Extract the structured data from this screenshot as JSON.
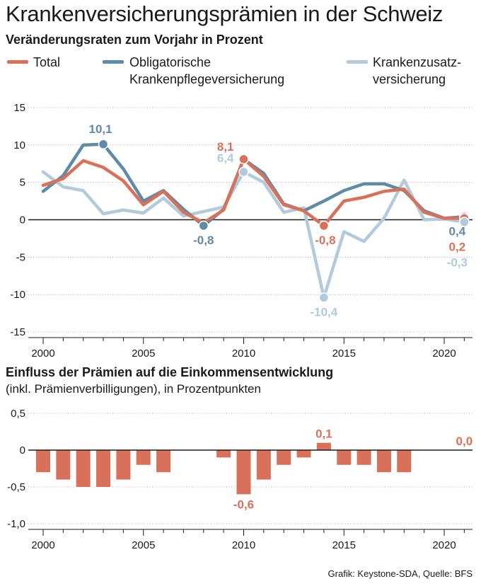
{
  "title": "Krankenversicherungsprämien in der Schweiz",
  "source": "Grafik: Keystone-SDA, Quelle: BFS",
  "colors": {
    "total": "#d9705a",
    "okp": "#5f8ba6",
    "zusatz": "#b3cadb",
    "zero": "#1a1a1a",
    "grid": "#999999",
    "bar": "#d9705a"
  },
  "legend": {
    "total": "Total",
    "okp_line1": "Obligatorische",
    "okp_line2": "Krankenpflegeversicherung",
    "zusatz_line1": "Krankenzusatz-",
    "zusatz_line2": "versicherung"
  },
  "chart_data": [
    {
      "type": "line",
      "title": "Veränderungsraten zum Vorjahr in Prozent",
      "x": [
        2000,
        2001,
        2002,
        2003,
        2004,
        2005,
        2006,
        2007,
        2008,
        2009,
        2010,
        2011,
        2012,
        2013,
        2014,
        2015,
        2016,
        2017,
        2018,
        2019,
        2020,
        2021
      ],
      "ylim": [
        -15,
        15
      ],
      "yticks": [
        "15",
        "10",
        "5",
        "0",
        "-5",
        "-10",
        "-15"
      ],
      "xticks": [
        "2000",
        "2005",
        "2010",
        "2015",
        "2020"
      ],
      "series": [
        {
          "name": "Krankenzusatzversicherung",
          "key": "zusatz",
          "values": [
            6.4,
            4.4,
            3.9,
            0.8,
            1.3,
            0.9,
            2.9,
            0.5,
            1.1,
            1.7,
            6.4,
            5.0,
            1.0,
            1.6,
            -10.4,
            -1.6,
            -2.9,
            0.2,
            5.3,
            0.0,
            0.1,
            -0.3
          ]
        },
        {
          "name": "Obligatorische Krankenpflegeversicherung",
          "key": "okp",
          "values": [
            3.8,
            5.9,
            10.0,
            10.1,
            6.8,
            2.5,
            3.9,
            1.4,
            -0.8,
            1.4,
            8.1,
            6.2,
            2.1,
            1.2,
            2.5,
            3.9,
            4.8,
            4.8,
            3.9,
            1.2,
            0.2,
            0.4
          ]
        },
        {
          "name": "Total",
          "key": "total",
          "values": [
            4.6,
            5.5,
            7.9,
            7.0,
            5.2,
            2.0,
            3.8,
            1.0,
            -0.4,
            1.3,
            8.1,
            5.8,
            2.0,
            1.2,
            -0.8,
            2.5,
            3.0,
            3.8,
            4.1,
            1.0,
            0.2,
            0.2
          ]
        }
      ],
      "annotations": [
        {
          "text": "10,1",
          "series": "okp",
          "x": 2003,
          "y": 10.1
        },
        {
          "text": "-0,8",
          "series": "okp",
          "x": 2008,
          "y": -0.8
        },
        {
          "text": "8,1",
          "series": "total",
          "x": 2010,
          "y": 8.1
        },
        {
          "text": "6,4",
          "series": "zusatz",
          "x": 2010,
          "y": 6.4
        },
        {
          "text": "-0,8",
          "series": "total",
          "x": 2014,
          "y": -0.8
        },
        {
          "text": "-10,4",
          "series": "zusatz",
          "x": 2014,
          "y": -10.4
        },
        {
          "text": "0,4",
          "series": "okp",
          "x": 2021,
          "y": 0.4
        },
        {
          "text": "0,2",
          "series": "total",
          "x": 2021,
          "y": 0.2
        },
        {
          "text": "-0,3",
          "series": "zusatz",
          "x": 2021,
          "y": -0.3
        }
      ]
    },
    {
      "type": "bar",
      "title": "Einfluss der Prämien auf die Einkommensentwicklung",
      "subtitle": "(inkl. Prämienverbilligungen), in Prozentpunkten",
      "x": [
        2000,
        2001,
        2002,
        2003,
        2004,
        2005,
        2006,
        2007,
        2008,
        2009,
        2010,
        2011,
        2012,
        2013,
        2014,
        2015,
        2016,
        2017,
        2018,
        2019,
        2020,
        2021
      ],
      "values": [
        -0.3,
        -0.4,
        -0.5,
        -0.5,
        -0.4,
        -0.2,
        -0.3,
        0,
        0,
        -0.1,
        -0.6,
        -0.4,
        -0.2,
        -0.1,
        0.1,
        -0.2,
        -0.2,
        -0.3,
        -0.3,
        0,
        0,
        0.0
      ],
      "ylim": [
        -1.0,
        0.5
      ],
      "yticks": [
        "0,5",
        "0",
        "-0,5",
        "-1,0"
      ],
      "xticks": [
        "2000",
        "2005",
        "2010",
        "2015",
        "2020"
      ],
      "annotations": [
        {
          "text": "-0,6",
          "x": 2010,
          "y": -0.6
        },
        {
          "text": "0,1",
          "x": 2014,
          "y": 0.1
        },
        {
          "text": "0,0",
          "x": 2021,
          "y": 0.0
        }
      ]
    }
  ]
}
